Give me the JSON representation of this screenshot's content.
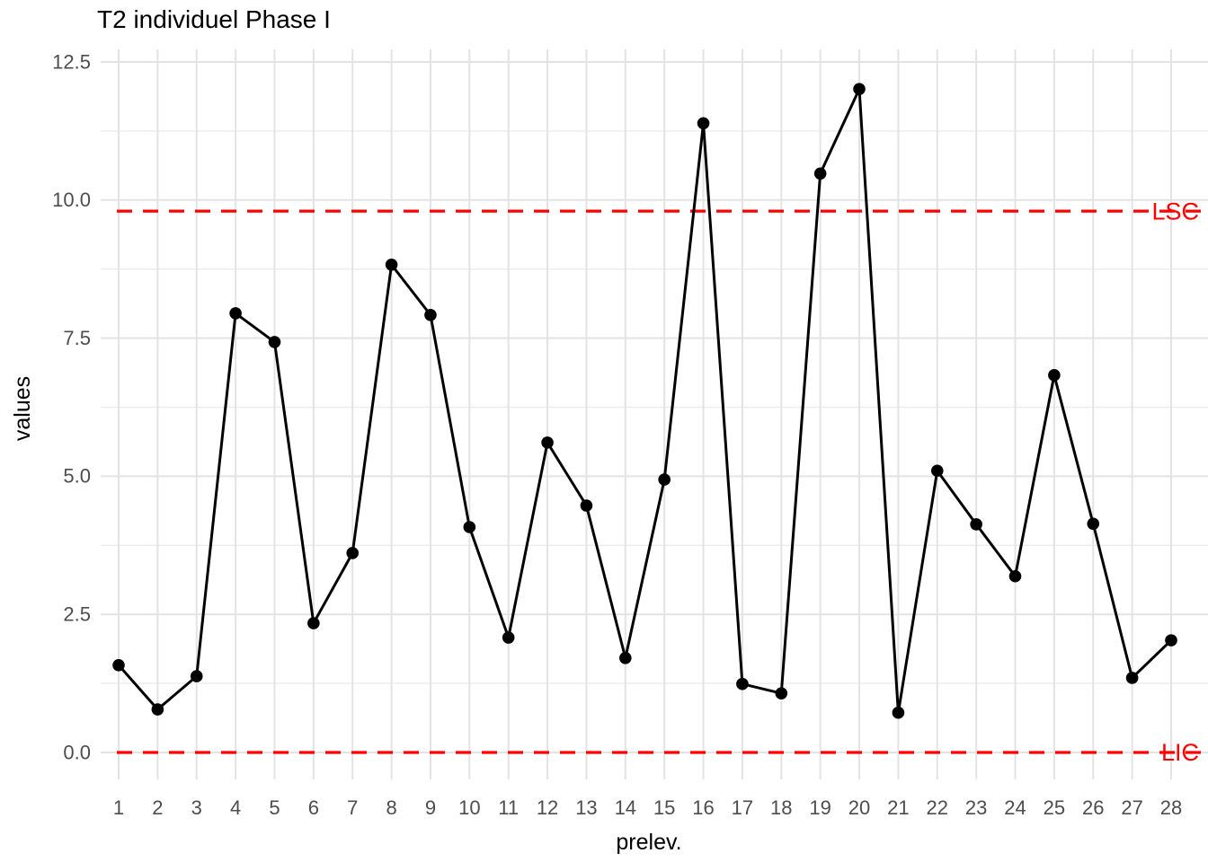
{
  "chart_data": {
    "type": "line",
    "title": "T2 individuel Phase I",
    "xlabel": "prelev.",
    "ylabel": "values",
    "x": [
      1,
      2,
      3,
      4,
      5,
      6,
      7,
      8,
      9,
      10,
      11,
      12,
      13,
      14,
      15,
      16,
      17,
      18,
      19,
      20,
      21,
      22,
      23,
      24,
      25,
      26,
      27,
      28
    ],
    "series": [
      {
        "name": "T2",
        "values": [
          1.58,
          0.78,
          1.38,
          7.95,
          7.43,
          2.34,
          3.61,
          8.83,
          7.92,
          4.08,
          2.08,
          5.61,
          4.47,
          1.71,
          4.94,
          11.39,
          1.24,
          1.07,
          10.48,
          12.01,
          0.72,
          5.1,
          4.13,
          3.19,
          6.83,
          4.14,
          1.35,
          2.03
        ]
      }
    ],
    "control_limits": [
      {
        "label": "LSC",
        "value": 9.8
      },
      {
        "label": "LIC",
        "value": 0.0
      }
    ],
    "yticks": {
      "values": [
        0.0,
        2.5,
        5.0,
        7.5,
        10.0,
        12.5
      ],
      "labels": [
        "0.0",
        "2.5",
        "5.0",
        "7.5",
        "10.0",
        "12.5"
      ]
    },
    "yticks_minor": [
      1.25,
      3.75,
      6.25,
      8.75,
      11.25
    ],
    "ylim": [
      0,
      12.5
    ],
    "xlim": [
      1,
      28
    ],
    "grid": {
      "horizontal_major": true,
      "horizontal_minor": true,
      "vertical_major": true,
      "vertical_minor": false,
      "legend_position": "none"
    },
    "style": {
      "series_color": "#000000",
      "point_color": "#000000",
      "control_limit_color": "#FF0000",
      "grid_major_color": "#E3E3E3",
      "grid_minor_color": "#ECECEC",
      "axis_text_color": "#4D4D4D",
      "title_color": "#000000",
      "background_color": "#FFFFFF",
      "line_style_limits": "dashed"
    }
  }
}
